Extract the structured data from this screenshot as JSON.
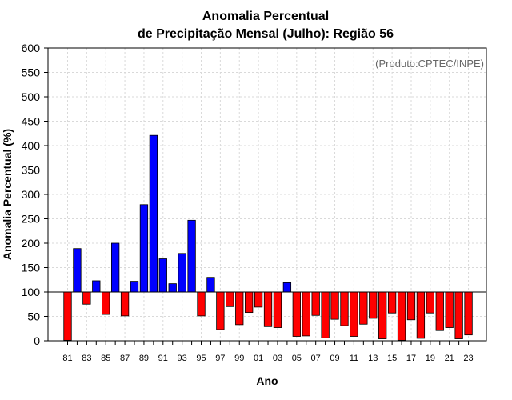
{
  "chart_data": {
    "type": "bar",
    "title": "Anomalia Percentual",
    "subtitle": "de Precipitação Mensal (Julho): Região 56",
    "xlabel": "Ano",
    "ylabel": "Anomalia Percentual (%)",
    "annotation": "(Produto:CPTEC/INPE)",
    "ylim": [
      0,
      600
    ],
    "baseline": 100,
    "yticks": [
      0,
      50,
      100,
      150,
      200,
      250,
      300,
      350,
      400,
      450,
      500,
      550,
      600
    ],
    "categories": [
      "81",
      "82",
      "83",
      "84",
      "85",
      "86",
      "87",
      "88",
      "89",
      "90",
      "91",
      "92",
      "93",
      "94",
      "95",
      "96",
      "97",
      "98",
      "99",
      "00",
      "01",
      "02",
      "03",
      "04",
      "05",
      "06",
      "07",
      "08",
      "09",
      "10",
      "11",
      "12",
      "13",
      "14",
      "15",
      "16",
      "17",
      "18",
      "19",
      "20",
      "21",
      "22",
      "23"
    ],
    "xtick_labels": [
      "81",
      "83",
      "85",
      "87",
      "89",
      "91",
      "93",
      "95",
      "97",
      "99",
      "01",
      "03",
      "05",
      "07",
      "09",
      "11",
      "13",
      "15",
      "17",
      "19",
      "21",
      "23"
    ],
    "values": [
      1,
      189,
      75,
      123,
      54,
      200,
      51,
      122,
      279,
      421,
      168,
      117,
      179,
      247,
      51,
      130,
      23,
      70,
      33,
      58,
      69,
      29,
      27,
      119,
      9,
      10,
      52,
      6,
      44,
      31,
      9,
      34,
      46,
      4,
      57,
      1,
      43,
      5,
      57,
      21,
      27,
      4,
      12
    ],
    "grid": true,
    "colors": {
      "above": "#0000ff",
      "below": "#ff0000",
      "edge": "#000000",
      "grid": "#d9d9d9"
    }
  }
}
